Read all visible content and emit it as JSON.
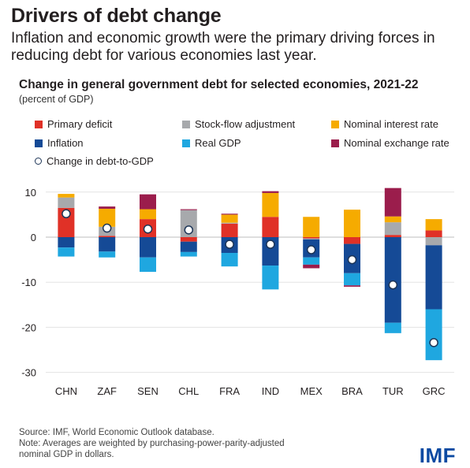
{
  "headline": "Drivers of debt change",
  "subhead": "Inflation and economic growth were the primary driving forces in reducing debt for various economies last year.",
  "chart_data": {
    "type": "bar",
    "stacked": true,
    "title": "Change in general government debt for selected economies, 2021-22",
    "ylabel": "(percent of GDP)",
    "ylim": [
      -32,
      11
    ],
    "yticks": [
      10,
      0,
      -10,
      -20,
      -30
    ],
    "grid": true,
    "legend_position": "top",
    "categories": [
      "CHN",
      "ZAF",
      "SEN",
      "CHL",
      "FRA",
      "IND",
      "MEX",
      "BRA",
      "TUR",
      "GRC"
    ],
    "series": [
      {
        "name": "Primary deficit",
        "color": "#e03127",
        "values": [
          6.5,
          0.3,
          4.0,
          -1.0,
          3.0,
          4.5,
          -0.3,
          -1.5,
          0.5,
          1.5
        ]
      },
      {
        "name": "Stock-flow adjustment",
        "color": "#a7a9ac",
        "values": [
          2.3,
          2.0,
          0.0,
          6.0,
          0.2,
          0.0,
          -0.2,
          0.0,
          2.8,
          -1.8
        ]
      },
      {
        "name": "Nominal interest rate",
        "color": "#f6ab00",
        "values": [
          0.8,
          4.0,
          2.2,
          0.0,
          1.8,
          5.3,
          4.5,
          6.1,
          1.3,
          2.5
        ]
      },
      {
        "name": "Inflation",
        "color": "#154a96",
        "values": [
          -2.3,
          -3.2,
          -4.5,
          -2.3,
          -3.5,
          -6.3,
          -4.0,
          -6.5,
          -19.0,
          -14.2
        ]
      },
      {
        "name": "Real GDP",
        "color": "#1fa7e0",
        "values": [
          -2.0,
          -1.3,
          -3.2,
          -1.0,
          -3.0,
          -5.3,
          -1.6,
          -2.7,
          -2.3,
          -11.3
        ]
      },
      {
        "name": "Nominal exchange rate",
        "color": "#9b1d4c",
        "values": [
          0.0,
          0.5,
          3.3,
          0.2,
          0.2,
          0.4,
          -0.8,
          -0.3,
          6.3,
          0.0
        ]
      }
    ],
    "marker_series": {
      "name": "Change in debt-to-GDP",
      "values": [
        5.2,
        2.0,
        1.8,
        1.6,
        -1.6,
        -1.6,
        -2.8,
        -5.0,
        -10.6,
        -23.4
      ]
    }
  },
  "footnote": {
    "source": "Source: IMF, World Economic Outlook database.",
    "note_line1": "Note: Averages are weighted by purchasing-power-parity-adjusted",
    "note_line2": "nominal GDP in dollars."
  },
  "logo_text": "IMF"
}
